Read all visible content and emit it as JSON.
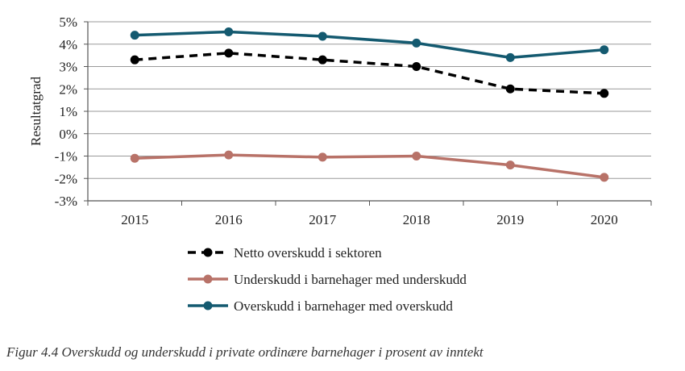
{
  "chart_data": {
    "type": "line",
    "title": "",
    "xlabel": "",
    "ylabel": "Resultatgrad",
    "ylim": [
      -3,
      5
    ],
    "y_ticks": [
      "-3%",
      "-2%",
      "-1%",
      "0%",
      "1%",
      "2%",
      "3%",
      "4%",
      "5%"
    ],
    "x": [
      "2015",
      "2016",
      "2017",
      "2018",
      "2019",
      "2020"
    ],
    "grid": "horizontal",
    "legend_position": "bottom",
    "series": [
      {
        "name": "Netto overskudd i sektoren",
        "values": [
          3.3,
          3.6,
          3.3,
          3.0,
          2.0,
          1.8
        ],
        "color": "#000000",
        "style": "dashed"
      },
      {
        "name": "Underskudd i barnehager med underskudd",
        "values": [
          -1.1,
          -0.95,
          -1.05,
          -1.0,
          -1.4,
          -1.95
        ],
        "color": "#b87268",
        "style": "solid"
      },
      {
        "name": "Overskudd i barnehager med overskudd",
        "values": [
          4.4,
          4.55,
          4.35,
          4.05,
          3.4,
          3.75
        ],
        "color": "#145a70",
        "style": "solid"
      }
    ]
  },
  "caption": "Figur 4.4 Overskudd og underskudd i private ordinære barnehager i prosent av inntekt"
}
